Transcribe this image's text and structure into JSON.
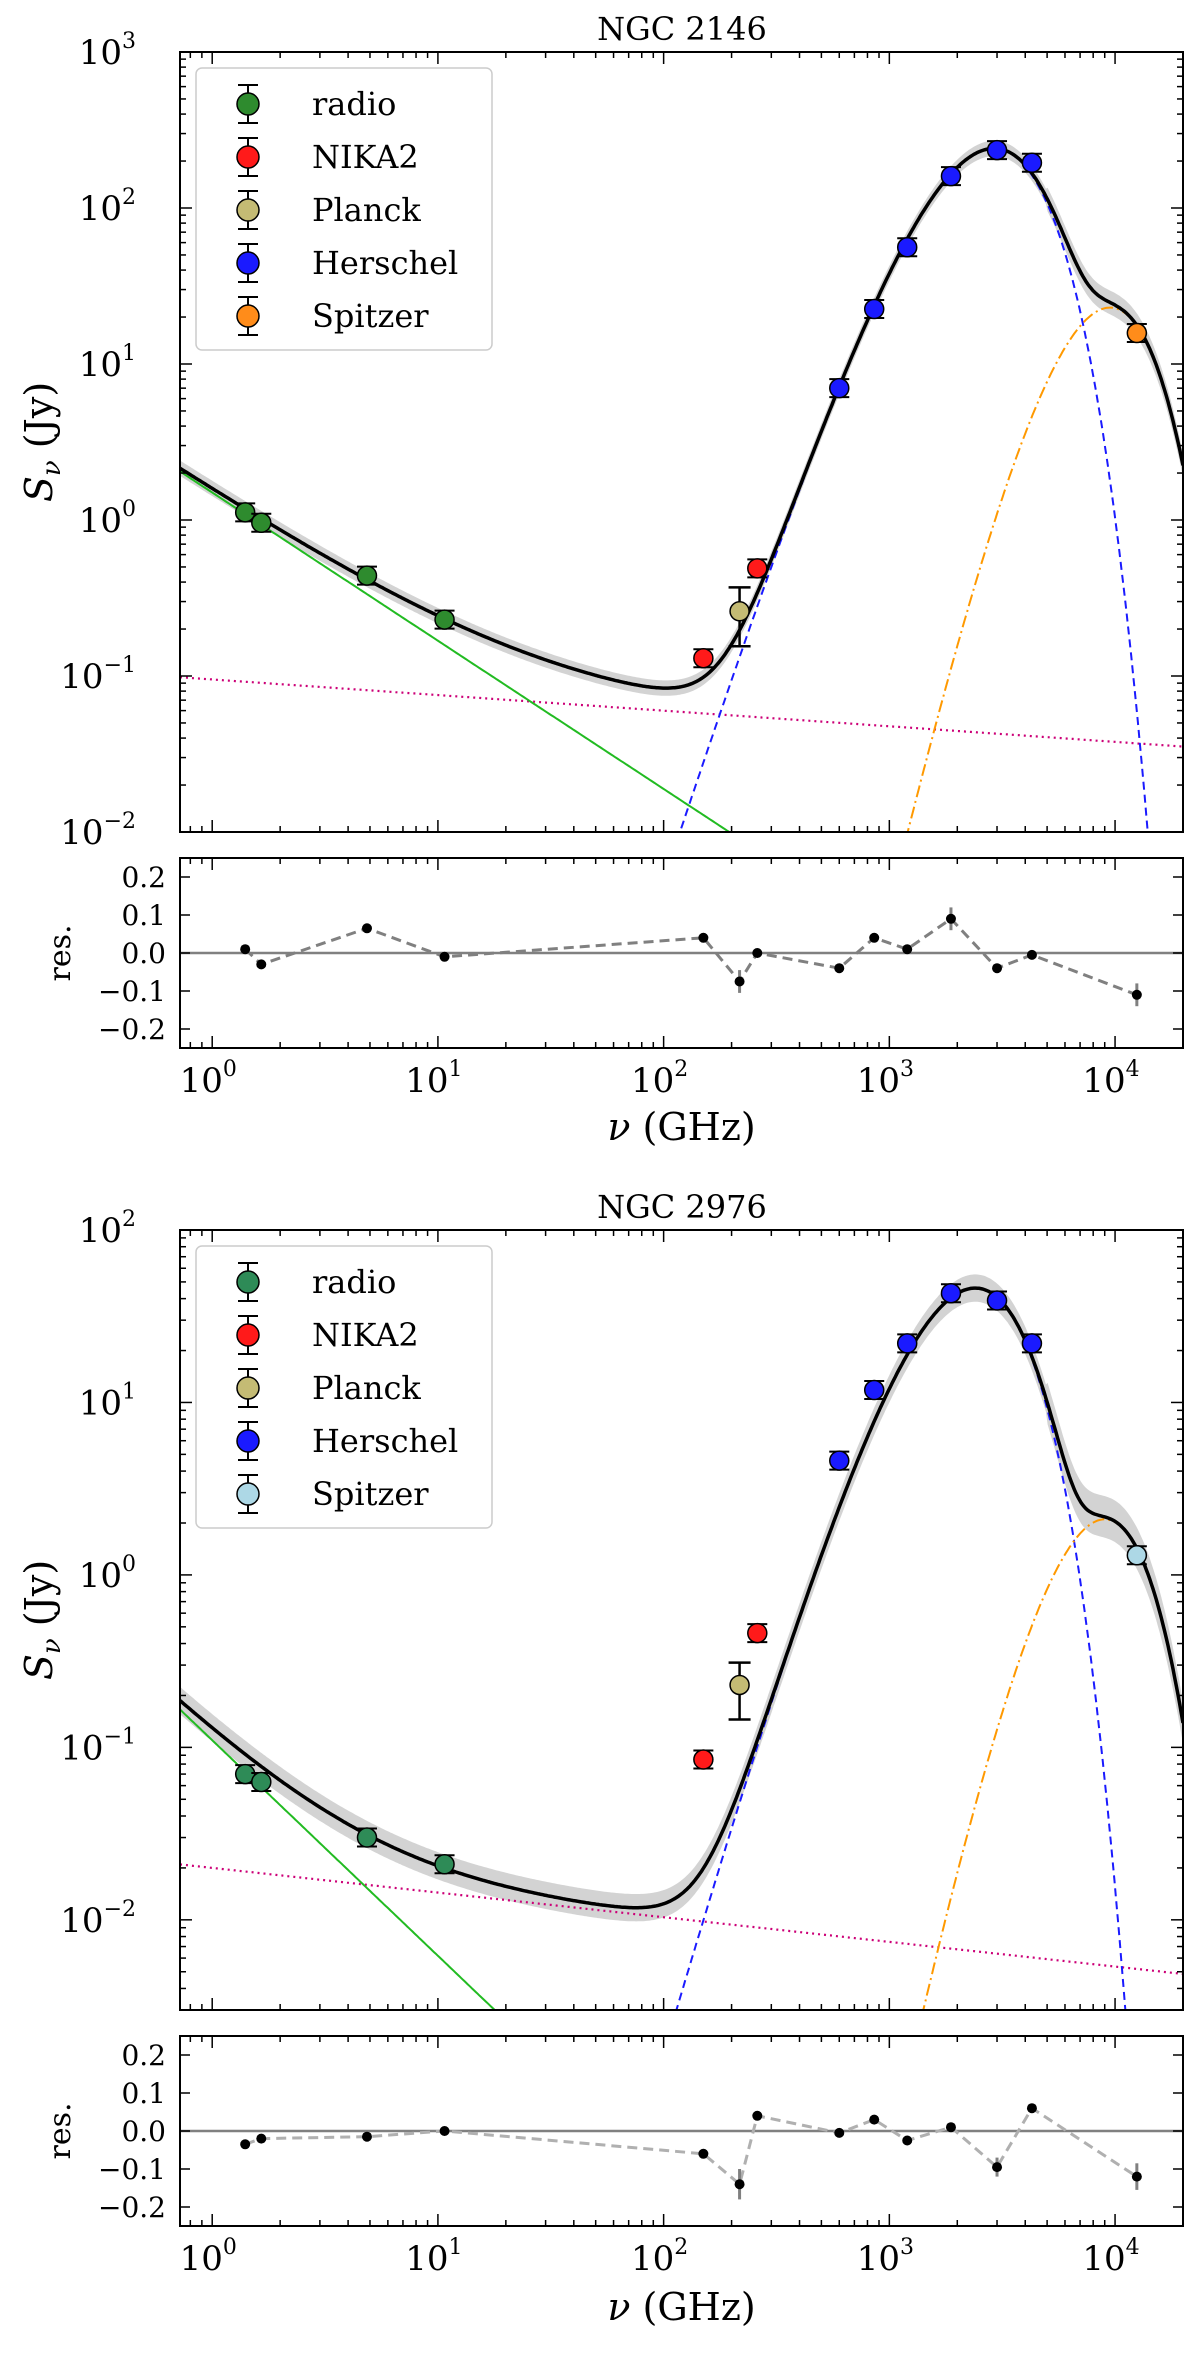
{
  "chart_data": [
    {
      "type": "scatter",
      "title": "NGC 2146",
      "xlabel_sym": "ν",
      "xlabel_unit": " (GHz)",
      "ylabel_sym": "S",
      "ylabel_sub": "ν",
      "ylabel_unit": " (Jy)",
      "res_label": "res.",
      "xscale": "log",
      "yscale": "log",
      "xlim": [
        0.72,
        20000
      ],
      "ylim": [
        0.01,
        1000
      ],
      "res_ylim": [
        -0.25,
        0.25
      ],
      "x_ticks": [
        1,
        10,
        100,
        1000,
        10000
      ],
      "y_ticks": [
        0.01,
        0.1,
        1,
        10,
        100,
        1000
      ],
      "res_ticks": [
        0.2,
        0.1,
        0.0,
        -0.1,
        -0.2
      ],
      "res_tick_labels": [
        "0.2",
        "0.1",
        "0.0",
        "−0.1",
        "−0.2"
      ],
      "legend_position": "top-left",
      "legend": [
        {
          "name": "radio",
          "color": "#2e8b2e"
        },
        {
          "name": "NIKA2",
          "color": "#ff1a1a"
        },
        {
          "name": "Planck",
          "color": "#c4bb74"
        },
        {
          "name": "Herschel",
          "color": "#1a1aff"
        },
        {
          "name": "Spitzer",
          "color": "#ff8c1a"
        }
      ],
      "points": [
        {
          "set": "radio",
          "x": 1.4,
          "y": 1.12
        },
        {
          "set": "radio",
          "x": 1.65,
          "y": 0.96
        },
        {
          "set": "radio",
          "x": 4.85,
          "y": 0.44
        },
        {
          "set": "radio",
          "x": 10.7,
          "y": 0.23
        },
        {
          "set": "NIKA2",
          "x": 150,
          "y": 0.13
        },
        {
          "set": "Planck",
          "x": 217,
          "y": 0.26,
          "ylo": 0.155,
          "yhi": 0.37
        },
        {
          "set": "NIKA2",
          "x": 260,
          "y": 0.49
        },
        {
          "set": "Herschel",
          "x": 600,
          "y": 7.0
        },
        {
          "set": "Herschel",
          "x": 857,
          "y": 22.5
        },
        {
          "set": "Herschel",
          "x": 1200,
          "y": 56
        },
        {
          "set": "Herschel",
          "x": 1875,
          "y": 160
        },
        {
          "set": "Herschel",
          "x": 3000,
          "y": 235
        },
        {
          "set": "Herschel",
          "x": 4283,
          "y": 195
        },
        {
          "set": "Spitzer",
          "x": 12490,
          "y": 15.8
        }
      ],
      "model": {
        "synchrotron": {
          "amp": 1.5,
          "index": -0.95
        },
        "free_free": {
          "amp": 0.095,
          "index": -0.1
        },
        "dust": {
          "amp": 240,
          "peak": 2900,
          "beta": 1.5
        },
        "hot_dust": {
          "amp": 23,
          "peak": 9500,
          "beta": 3.5
        },
        "band_frac": 0.12
      },
      "residuals": [
        {
          "x": 1.4,
          "r": 0.01
        },
        {
          "x": 1.65,
          "r": -0.03
        },
        {
          "x": 4.85,
          "r": 0.065
        },
        {
          "x": 10.7,
          "r": -0.01
        },
        {
          "x": 150,
          "r": 0.04
        },
        {
          "x": 217,
          "r": -0.075,
          "err": 0.03
        },
        {
          "x": 260,
          "r": 0.0
        },
        {
          "x": 600,
          "r": -0.04
        },
        {
          "x": 857,
          "r": 0.04
        },
        {
          "x": 1200,
          "r": 0.01
        },
        {
          "x": 1875,
          "r": 0.09,
          "err": 0.03
        },
        {
          "x": 3000,
          "r": -0.04
        },
        {
          "x": 4283,
          "r": -0.005
        },
        {
          "x": 12490,
          "r": -0.11,
          "err": 0.03
        }
      ]
    },
    {
      "type": "scatter",
      "title": "NGC 2976",
      "xlabel_sym": "ν",
      "xlabel_unit": " (GHz)",
      "ylabel_sym": "S",
      "ylabel_sub": "ν",
      "ylabel_unit": " (Jy)",
      "res_label": "res.",
      "xscale": "log",
      "yscale": "log",
      "xlim": [
        0.72,
        20000
      ],
      "ylim": [
        0.003,
        100
      ],
      "res_ylim": [
        -0.25,
        0.25
      ],
      "x_ticks": [
        1,
        10,
        100,
        1000,
        10000
      ],
      "y_ticks": [
        0.01,
        0.1,
        1,
        10,
        100
      ],
      "res_ticks": [
        0.2,
        0.1,
        0.0,
        -0.1,
        -0.2
      ],
      "res_tick_labels": [
        "0.2",
        "0.1",
        "0.0",
        "−0.1",
        "−0.2"
      ],
      "legend_position": "top-left",
      "legend": [
        {
          "name": "radio",
          "color": "#2e8b57"
        },
        {
          "name": "NIKA2",
          "color": "#ff1a1a"
        },
        {
          "name": "Planck",
          "color": "#c4bb74"
        },
        {
          "name": "Herschel",
          "color": "#1a1aff"
        },
        {
          "name": "Spitzer",
          "color": "#add8e6"
        }
      ],
      "points": [
        {
          "set": "radio",
          "x": 1.4,
          "y": 0.07
        },
        {
          "set": "radio",
          "x": 1.65,
          "y": 0.063
        },
        {
          "set": "radio",
          "x": 4.85,
          "y": 0.03
        },
        {
          "set": "radio",
          "x": 10.7,
          "y": 0.021
        },
        {
          "set": "NIKA2",
          "x": 150,
          "y": 0.085
        },
        {
          "set": "Planck",
          "x": 217,
          "y": 0.23,
          "ylo": 0.145,
          "yhi": 0.31
        },
        {
          "set": "NIKA2",
          "x": 260,
          "y": 0.46
        },
        {
          "set": "Herschel",
          "x": 600,
          "y": 4.6
        },
        {
          "set": "Herschel",
          "x": 857,
          "y": 11.8
        },
        {
          "set": "Herschel",
          "x": 1200,
          "y": 22
        },
        {
          "set": "Herschel",
          "x": 1875,
          "y": 43
        },
        {
          "set": "Herschel",
          "x": 3000,
          "y": 39
        },
        {
          "set": "Herschel",
          "x": 4283,
          "y": 22
        },
        {
          "set": "Spitzer",
          "x": 12490,
          "y": 1.3
        }
      ],
      "model": {
        "synchrotron": {
          "amp": 0.11,
          "index": -1.25
        },
        "free_free": {
          "amp": 0.02,
          "index": -0.143
        },
        "dust": {
          "amp": 46,
          "peak": 2400,
          "beta": 1.6
        },
        "hot_dust": {
          "amp": 2.1,
          "peak": 9000,
          "beta": 3.5
        },
        "band_frac": 0.2
      },
      "residuals": [
        {
          "x": 1.4,
          "r": -0.035
        },
        {
          "x": 1.65,
          "r": -0.02
        },
        {
          "x": 4.85,
          "r": -0.015
        },
        {
          "x": 10.7,
          "r": 0.0
        },
        {
          "x": 150,
          "r": -0.06
        },
        {
          "x": 217,
          "r": -0.14,
          "err": 0.04
        },
        {
          "x": 260,
          "r": 0.04
        },
        {
          "x": 600,
          "r": -0.005
        },
        {
          "x": 857,
          "r": 0.03
        },
        {
          "x": 1200,
          "r": -0.025
        },
        {
          "x": 1875,
          "r": 0.01
        },
        {
          "x": 3000,
          "r": -0.095,
          "err": 0.025
        },
        {
          "x": 4283,
          "r": 0.06
        },
        {
          "x": 12490,
          "r": -0.12,
          "err": 0.035
        }
      ]
    }
  ]
}
